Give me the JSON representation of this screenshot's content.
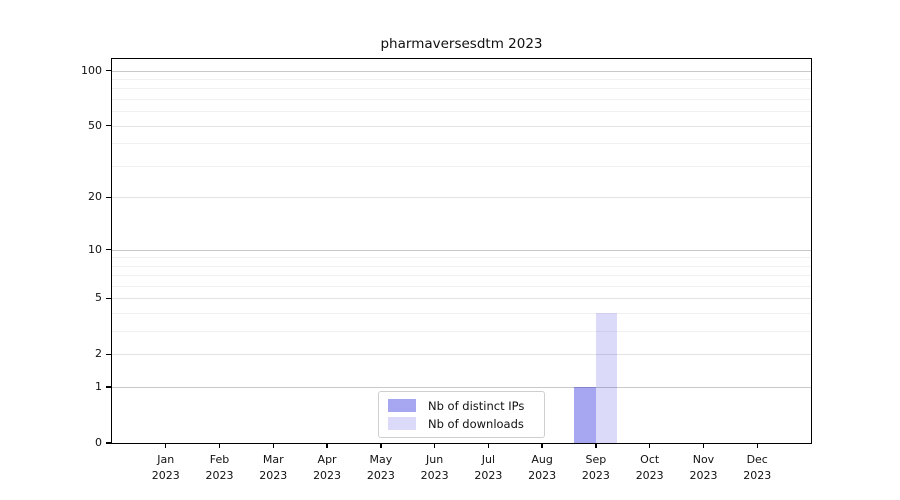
{
  "chart_data": {
    "type": "bar",
    "title": "pharmaversesdtm 2023",
    "x_axis": {
      "categories": [
        {
          "month": "Jan",
          "year": "2023"
        },
        {
          "month": "Feb",
          "year": "2023"
        },
        {
          "month": "Mar",
          "year": "2023"
        },
        {
          "month": "Apr",
          "year": "2023"
        },
        {
          "month": "May",
          "year": "2023"
        },
        {
          "month": "Jun",
          "year": "2023"
        },
        {
          "month": "Jul",
          "year": "2023"
        },
        {
          "month": "Aug",
          "year": "2023"
        },
        {
          "month": "Sep",
          "year": "2023"
        },
        {
          "month": "Oct",
          "year": "2023"
        },
        {
          "month": "Nov",
          "year": "2023"
        },
        {
          "month": "Dec",
          "year": "2023"
        }
      ]
    },
    "y_axis": {
      "scale": "log1p",
      "ticks": [
        0,
        1,
        2,
        5,
        10,
        20,
        50,
        100
      ],
      "minor_ticks": [
        3,
        4,
        6,
        7,
        8,
        9,
        30,
        40,
        60,
        70,
        80,
        90
      ],
      "emphasized_ticks": [
        1,
        10,
        100
      ],
      "max": 115.6,
      "grid": "on"
    },
    "series": [
      {
        "name": "Nb of distinct IPs",
        "color": "rgba(0,0,215,0.35)",
        "color_hex_on_white": "#a6a6f1",
        "values": [
          0,
          0,
          0,
          0,
          0,
          0,
          0,
          0,
          1,
          0,
          0,
          0
        ]
      },
      {
        "name": "Nb of downloads",
        "color": "rgba(0,0,215,0.14)",
        "color_hex_on_white": "#dcdcf8",
        "values": [
          0,
          0,
          0,
          0,
          0,
          0,
          0,
          0,
          4,
          0,
          0,
          0
        ]
      }
    ],
    "legend": {
      "position": "lower center"
    },
    "colors": {
      "grid_emphasized": "#c9c9c9",
      "grid_labeled": "#e3e3e3",
      "grid_minor": "#f1f1f1",
      "axis": "#000000",
      "background": "#ffffff"
    }
  }
}
